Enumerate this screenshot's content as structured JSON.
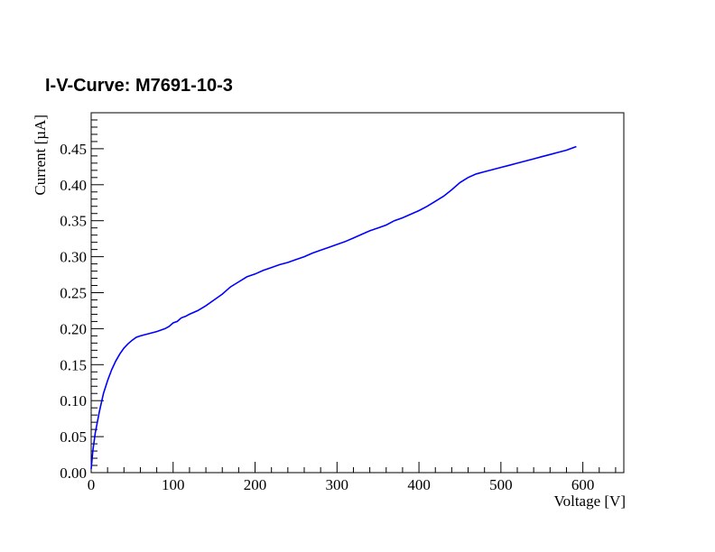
{
  "chart_data": {
    "type": "line",
    "title": "I-V-Curve: M7691-10-3",
    "xlabel": "Voltage [V]",
    "ylabel": "Current [µA]",
    "xlim": [
      0,
      650
    ],
    "ylim": [
      0,
      0.5
    ],
    "xticks": [
      "0",
      "100",
      "200",
      "300",
      "400",
      "500",
      "600"
    ],
    "yticks": [
      "0.00",
      "0.05",
      "0.10",
      "0.15",
      "0.20",
      "0.25",
      "0.30",
      "0.35",
      "0.40",
      "0.45"
    ],
    "grid": false,
    "series_color": "#0000ff",
    "x": [
      0,
      2,
      5,
      10,
      15,
      20,
      25,
      30,
      35,
      40,
      45,
      50,
      55,
      60,
      70,
      80,
      90,
      95,
      100,
      105,
      110,
      115,
      120,
      130,
      140,
      150,
      160,
      170,
      180,
      190,
      200,
      210,
      220,
      230,
      240,
      250,
      260,
      270,
      280,
      290,
      300,
      310,
      320,
      330,
      340,
      350,
      360,
      370,
      380,
      390,
      400,
      410,
      420,
      430,
      440,
      450,
      460,
      470,
      480,
      490,
      500,
      510,
      520,
      530,
      540,
      550,
      560,
      570,
      580,
      592
    ],
    "y": [
      0.005,
      0.03,
      0.055,
      0.085,
      0.11,
      0.128,
      0.143,
      0.155,
      0.165,
      0.173,
      0.179,
      0.184,
      0.188,
      0.19,
      0.193,
      0.196,
      0.2,
      0.203,
      0.208,
      0.21,
      0.215,
      0.217,
      0.22,
      0.225,
      0.232,
      0.24,
      0.248,
      0.258,
      0.265,
      0.272,
      0.276,
      0.281,
      0.285,
      0.289,
      0.292,
      0.296,
      0.3,
      0.305,
      0.309,
      0.313,
      0.317,
      0.321,
      0.326,
      0.331,
      0.336,
      0.34,
      0.344,
      0.35,
      0.354,
      0.359,
      0.364,
      0.37,
      0.377,
      0.384,
      0.393,
      0.403,
      0.41,
      0.415,
      0.418,
      0.421,
      0.424,
      0.427,
      0.43,
      0.433,
      0.436,
      0.439,
      0.442,
      0.445,
      0.448,
      0.453
    ]
  }
}
